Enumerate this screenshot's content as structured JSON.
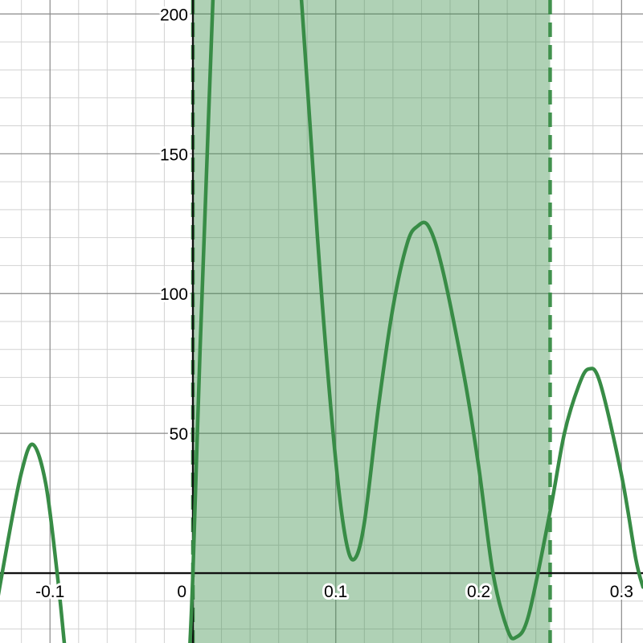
{
  "chart_data": {
    "type": "line",
    "title": "",
    "xlabel": "",
    "ylabel": "",
    "xlim": [
      -0.135,
      0.315
    ],
    "ylim": [
      -25,
      205
    ],
    "grid": true,
    "x_major_step": 0.1,
    "x_minor_step": 0.02,
    "y_major_step": 50,
    "y_minor_step": 10,
    "x_tick_labels": [
      {
        "value": -0.1,
        "label": "-0.1"
      },
      {
        "value": 0,
        "label": "0"
      },
      {
        "value": 0.1,
        "label": "0.1"
      },
      {
        "value": 0.2,
        "label": "0.2"
      },
      {
        "value": 0.3,
        "label": "0.3"
      }
    ],
    "y_tick_labels": [
      {
        "value": 50,
        "label": "50"
      },
      {
        "value": 100,
        "label": "100"
      },
      {
        "value": 150,
        "label": "150"
      },
      {
        "value": 200,
        "label": "200"
      }
    ],
    "shaded_region": {
      "x_from": 0.0,
      "x_to": 0.25,
      "color": "#388c46",
      "opacity": 0.4,
      "boundary_style": "dashed"
    },
    "series": [
      {
        "color": "#388c46",
        "points": [
          {
            "x": -0.142,
            "y": -25
          },
          {
            "x": -0.13,
            "y": 10
          },
          {
            "x": -0.12,
            "y": 36
          },
          {
            "x": -0.112,
            "y": 46
          },
          {
            "x": -0.103,
            "y": 32
          },
          {
            "x": -0.095,
            "y": 0
          },
          {
            "x": -0.09,
            "y": -25
          },
          {
            "x": null,
            "y": null
          },
          {
            "x": -0.002,
            "y": -25
          },
          {
            "x": 0.0,
            "y": 0
          },
          {
            "x": 0.005,
            "y": 80
          },
          {
            "x": 0.01,
            "y": 150
          },
          {
            "x": 0.014,
            "y": 205
          },
          {
            "x": null,
            "y": null
          },
          {
            "x": 0.076,
            "y": 205
          },
          {
            "x": 0.082,
            "y": 160
          },
          {
            "x": 0.09,
            "y": 100
          },
          {
            "x": 0.1,
            "y": 40
          },
          {
            "x": 0.107,
            "y": 12
          },
          {
            "x": 0.113,
            "y": 5
          },
          {
            "x": 0.12,
            "y": 18
          },
          {
            "x": 0.13,
            "y": 60
          },
          {
            "x": 0.14,
            "y": 95
          },
          {
            "x": 0.15,
            "y": 118
          },
          {
            "x": 0.157,
            "y": 124
          },
          {
            "x": 0.165,
            "y": 124
          },
          {
            "x": 0.175,
            "y": 108
          },
          {
            "x": 0.19,
            "y": 70
          },
          {
            "x": 0.2,
            "y": 38
          },
          {
            "x": 0.21,
            "y": 0
          },
          {
            "x": 0.22,
            "y": -20
          },
          {
            "x": 0.226,
            "y": -23
          },
          {
            "x": 0.235,
            "y": -15
          },
          {
            "x": 0.25,
            "y": 22
          },
          {
            "x": 0.26,
            "y": 50
          },
          {
            "x": 0.27,
            "y": 67
          },
          {
            "x": 0.277,
            "y": 73
          },
          {
            "x": 0.285,
            "y": 68
          },
          {
            "x": 0.3,
            "y": 35
          },
          {
            "x": 0.31,
            "y": 5
          },
          {
            "x": 0.315,
            "y": -5
          }
        ]
      }
    ]
  }
}
